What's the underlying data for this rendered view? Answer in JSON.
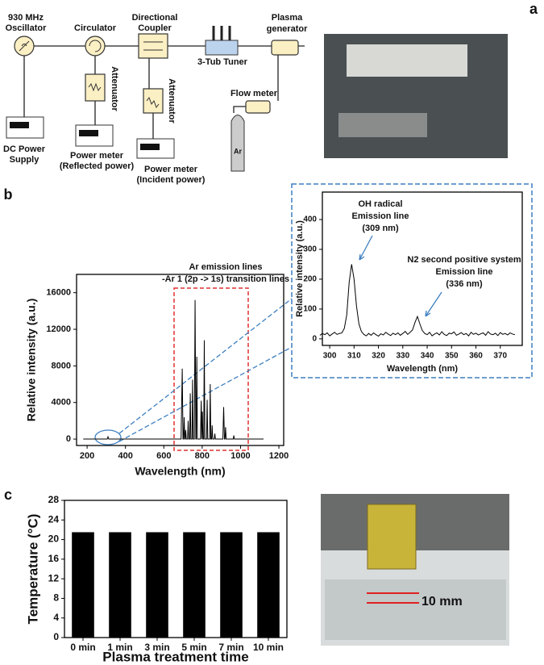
{
  "panel_labels": [
    "a",
    "b",
    "c"
  ],
  "diagram": {
    "nodes": [
      {
        "lines": [
          "930 MHz",
          "Oscillator"
        ]
      },
      {
        "lines": [
          "Circulator"
        ]
      },
      {
        "lines": [
          "Directional",
          "Coupler"
        ]
      },
      {
        "lines": [
          "3-Tub Tuner"
        ]
      },
      {
        "lines": [
          "Plasma",
          "generator"
        ]
      },
      {
        "lines": [
          "Attenuator"
        ]
      },
      {
        "lines": [
          "Attenuator"
        ]
      },
      {
        "lines": [
          "DC Power",
          "Supply"
        ]
      },
      {
        "lines": [
          "Power meter",
          "(Reflected power)"
        ]
      },
      {
        "lines": [
          "Power meter",
          "(Incident power)"
        ]
      },
      {
        "lines": [
          "Flow meter"
        ]
      },
      {
        "lines": [
          "Ar"
        ]
      }
    ]
  },
  "photo_label": "10 mm",
  "chart_data": [
    {
      "type": "line",
      "x_label": "Wavelength (nm)",
      "y_label": "Relative intensity (a.u.)",
      "annotations": [
        "Ar emission lines",
        "-Ar 1 (2p -> 1s) transition lines"
      ],
      "x": [
        180,
        305,
        309,
        313,
        690,
        696,
        700,
        703,
        706,
        709,
        711,
        714,
        717,
        724,
        727,
        730,
        735,
        738,
        741,
        747,
        750,
        753,
        759,
        763,
        767,
        769,
        772,
        775,
        791,
        795,
        798,
        801,
        804,
        808,
        811,
        814,
        823,
        826,
        829,
        839,
        842,
        845,
        849,
        852,
        855,
        863,
        866,
        869,
        908,
        912,
        916,
        919,
        922,
        925,
        962,
        965,
        968,
        1120
      ],
      "values": [
        0,
        0,
        250,
        0,
        0,
        7700,
        0,
        0,
        2400,
        0,
        0,
        1000,
        0,
        0,
        2000,
        0,
        0,
        5000,
        0,
        0,
        6500,
        0,
        0,
        15200,
        0,
        0,
        9000,
        0,
        0,
        4200,
        0,
        3000,
        0,
        0,
        10800,
        0,
        0,
        4300,
        0,
        0,
        6000,
        0,
        0,
        1500,
        0,
        0,
        600,
        0,
        0,
        3500,
        0,
        0,
        1300,
        0,
        0,
        400,
        0,
        0
      ],
      "color": "#000000",
      "xlim": [
        145,
        1225
      ],
      "xticks": [
        200,
        400,
        600,
        800,
        1000,
        1200
      ],
      "ylim": [
        -700,
        18000
      ],
      "yticks": [
        0,
        4000,
        8000,
        12000,
        16000
      ]
    },
    {
      "type": "line",
      "x_label": "Wavelength (nm)",
      "y_label": "Relative intensity (a.u.)",
      "annotations": [
        "OH radical",
        "Emission line",
        "(309 nm)",
        "N2 second positive system",
        "Emission line",
        "(336 nm)"
      ],
      "x": [
        296,
        297,
        298,
        299,
        300,
        301,
        302,
        303,
        304,
        305,
        306,
        307,
        308,
        309,
        310,
        311,
        312,
        313,
        314,
        315,
        316,
        317,
        318,
        319,
        320,
        321,
        322,
        323,
        324,
        325,
        326,
        327,
        328,
        329,
        330,
        331,
        332,
        333,
        334,
        335,
        336,
        337,
        338,
        339,
        340,
        341,
        342,
        343,
        344,
        345,
        346,
        347,
        348,
        349,
        350,
        351,
        352,
        353,
        354,
        355,
        356,
        357,
        358,
        359,
        360,
        361,
        362,
        363,
        364,
        365,
        366,
        367,
        368,
        369,
        370,
        371,
        372,
        373,
        374,
        375,
        376
      ],
      "values": [
        12,
        18,
        14,
        20,
        10,
        16,
        22,
        15,
        18,
        20,
        35,
        80,
        190,
        250,
        200,
        110,
        50,
        25,
        15,
        10,
        18,
        12,
        20,
        14,
        9,
        17,
        13,
        22,
        16,
        11,
        19,
        14,
        20,
        12,
        18,
        25,
        15,
        22,
        30,
        55,
        75,
        50,
        28,
        18,
        14,
        22,
        10,
        16,
        20,
        13,
        24,
        15,
        11,
        19,
        17,
        23,
        12,
        16,
        21,
        14,
        18,
        10,
        22,
        15,
        19,
        13,
        17,
        20,
        12,
        24,
        16,
        14,
        19,
        11,
        21,
        15,
        18,
        13,
        20,
        16,
        14
      ],
      "color": "#000000",
      "xlim": [
        297,
        379
      ],
      "xticks": [
        300,
        310,
        320,
        330,
        340,
        350,
        360,
        370
      ],
      "ylim": [
        -22,
        492
      ],
      "yticks": [
        0,
        100,
        200,
        300,
        400
      ]
    },
    {
      "type": "bar",
      "x_label": "Plasma treatment time",
      "y_label": "Temperature (°C)",
      "categories": [
        "0 min",
        "1 min",
        "3 min",
        "5 min",
        "7 min",
        "10 min"
      ],
      "values": [
        21.5,
        21.5,
        21.5,
        21.5,
        21.5,
        21.5
      ],
      "color": "#000000",
      "ylim": [
        0,
        28
      ],
      "yticks": [
        0,
        4,
        8,
        12,
        16,
        20,
        24,
        28
      ]
    }
  ]
}
